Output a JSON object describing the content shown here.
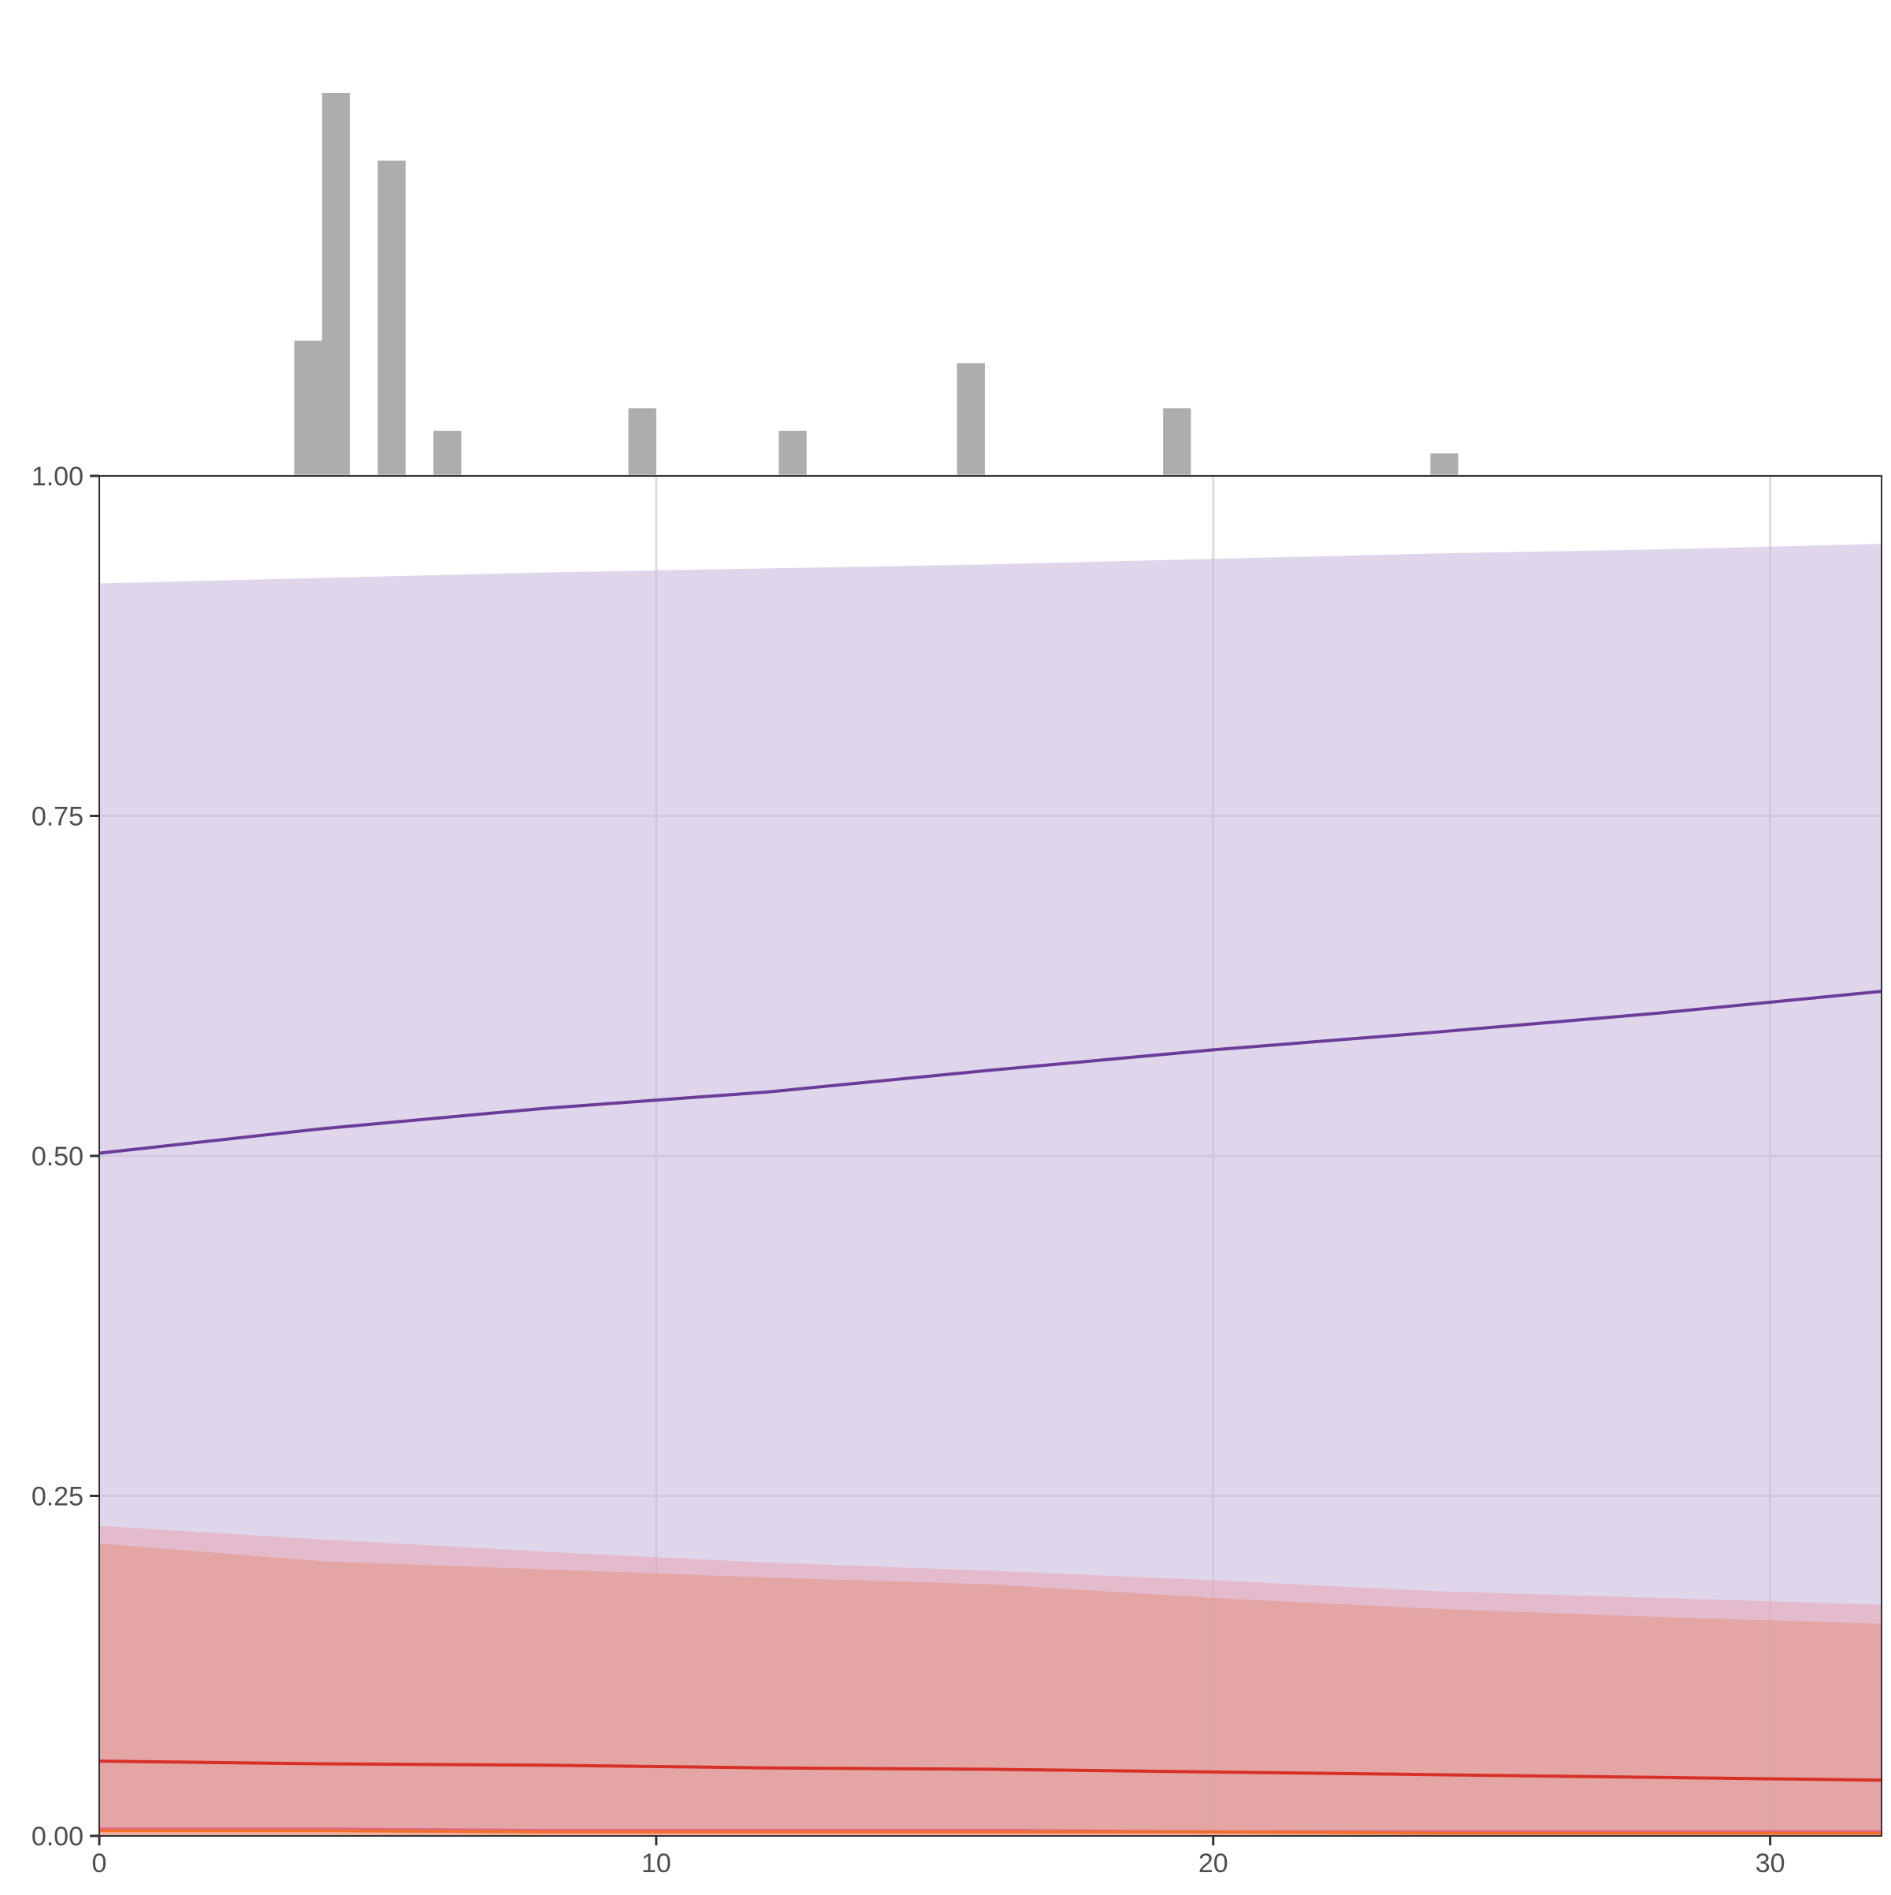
{
  "chart_data": {
    "type": "area",
    "title": "",
    "xlabel": "",
    "ylabel": "",
    "xlim": [
      0,
      32
    ],
    "ylim": [
      0,
      1
    ],
    "x_ticks": [
      0,
      10,
      20,
      30
    ],
    "x_tick_labels": [
      "0",
      "10",
      "20",
      "30"
    ],
    "y_ticks": [
      0,
      0.25,
      0.5,
      0.75,
      1
    ],
    "y_tick_labels": [
      "0.00",
      "0.25",
      "0.50",
      "0.75",
      "1.00"
    ],
    "grid": true,
    "legend": "none",
    "series": [
      {
        "color": "#6a3d9a",
        "band_color": "#cbbbdd",
        "x": [
          0,
          4,
          8,
          12,
          16,
          20,
          24,
          28,
          32
        ],
        "y": [
          0.502,
          0.52,
          0.535,
          0.547,
          0.563,
          0.578,
          0.591,
          0.605,
          0.621
        ],
        "lower": [
          0.0,
          0.0,
          0.0,
          0.0,
          0.0,
          0.0,
          0.0,
          0.0,
          0.0
        ],
        "upper": [
          0.921,
          0.925,
          0.929,
          0.932,
          0.935,
          0.939,
          0.943,
          0.946,
          0.95
        ]
      },
      {
        "color": "#e06090",
        "band_color": "#e6a8b8",
        "x": [
          0,
          4,
          8,
          12,
          16,
          20,
          24,
          28,
          32
        ],
        "y": [
          0.005,
          0.005,
          0.004,
          0.004,
          0.004,
          0.003,
          0.003,
          0.003,
          0.003
        ],
        "lower": [
          0.0,
          0.0,
          0.0,
          0.0,
          0.0,
          0.0,
          0.0,
          0.0,
          0.0
        ],
        "upper": [
          0.228,
          0.218,
          0.209,
          0.201,
          0.195,
          0.188,
          0.18,
          0.175,
          0.17
        ]
      },
      {
        "color": "#d73027",
        "band_color": "#e3978a",
        "x": [
          0,
          4,
          8,
          12,
          16,
          20,
          24,
          28,
          32
        ],
        "y": [
          0.055,
          0.053,
          0.052,
          0.05,
          0.049,
          0.047,
          0.045,
          0.043,
          0.041
        ],
        "lower": [
          0.0,
          0.0,
          0.0,
          0.0,
          0.0,
          0.0,
          0.0,
          0.0,
          0.0
        ],
        "upper": [
          0.215,
          0.202,
          0.196,
          0.19,
          0.185,
          0.175,
          0.167,
          0.161,
          0.156
        ]
      },
      {
        "color": "#f07030",
        "band_color": "#f5b896",
        "x": [
          0,
          4,
          8,
          12,
          16,
          20,
          24,
          28,
          32
        ],
        "y": [
          0.004,
          0.004,
          0.003,
          0.003,
          0.003,
          0.003,
          0.002,
          0.002,
          0.002
        ],
        "lower": [
          0.0,
          0.0,
          0.0,
          0.0,
          0.0,
          0.0,
          0.0,
          0.0,
          0.0
        ],
        "upper": [
          0.006,
          0.005,
          0.005,
          0.005,
          0.004,
          0.004,
          0.004,
          0.004,
          0.004
        ]
      }
    ],
    "histogram": {
      "color": "#adadad",
      "bin_width": 0.5,
      "bins_start": [
        3.5,
        4.0,
        5.0,
        6.0,
        9.5,
        12.2,
        15.4,
        19.1,
        23.9
      ],
      "counts": [
        6,
        17,
        14,
        2,
        3,
        2,
        5,
        3,
        1
      ]
    }
  }
}
